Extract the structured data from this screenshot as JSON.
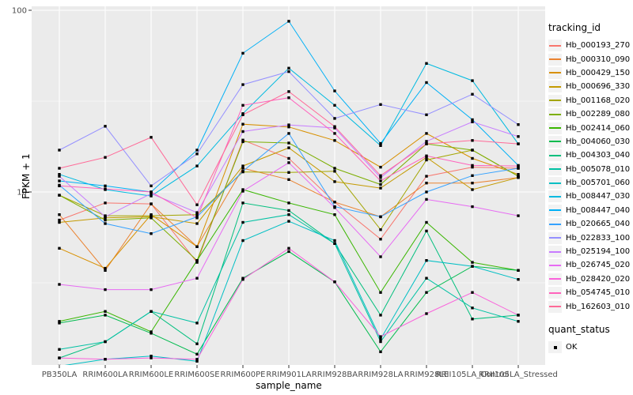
{
  "figure": {
    "legend": {
      "tracking_title": "tracking_id",
      "quant_title": "quant_status",
      "quant_item_label": "OK"
    },
    "colors": {
      "panel_bg": "#EBEBEB",
      "grid": "#FFFFFF",
      "legend_key_bg": "#F2F2F2",
      "tick_text": "#4D4D4D",
      "axis_title_text": "#000000",
      "marker": "#000000",
      "tick_mark": "#333333"
    }
  },
  "chart_data": {
    "type": "line",
    "title": "",
    "xlabel": "sample_name",
    "ylabel": "FPKM + 1",
    "y_scale": "log10",
    "ylim": [
      1.05,
      105
    ],
    "grid": "on",
    "legend_position": "right",
    "marker": "filled-black-square",
    "quant_status": "OK",
    "y_major_ticks": [
      {
        "value": 10,
        "label": "10"
      },
      {
        "value": 100,
        "label": "100"
      }
    ],
    "y_minor_ticks": [
      3.1623,
      31.623
    ],
    "categories": [
      "PB350LA",
      "RRIM600LA",
      "RRIM600LE",
      "RRIM600SE",
      "RRIM600PE",
      "RRIM901LA",
      "RRIM928BA",
      "RRIM928LA",
      "RRIM928LE",
      "RRII105LA_Control",
      "RRII105LA_Stressed"
    ],
    "series": [
      {
        "name": "Hb_000193_270",
        "color": "#F8766D",
        "values": [
          7.0,
          8.7,
          8.6,
          4.1,
          19.3,
          15.3,
          8.8,
          5.5,
          12.2,
          13.7,
          13.5
        ]
      },
      {
        "name": "Hb_000310_090",
        "color": "#EA8331",
        "values": [
          7.5,
          3.7,
          8.6,
          5.0,
          13.5,
          11.7,
          8.8,
          7.3,
          11.2,
          11.2,
          12.0
        ]
      },
      {
        "name": "Hb_000429_150",
        "color": "#D89000",
        "values": [
          4.9,
          3.8,
          7.5,
          5.0,
          23.6,
          22.8,
          19.2,
          13.7,
          21.0,
          15.3,
          12.5
        ]
      },
      {
        "name": "Hb_000696_330",
        "color": "#C49A00",
        "values": [
          6.8,
          7.2,
          7.3,
          6.7,
          13.9,
          17.5,
          11.4,
          10.5,
          15.5,
          10.3,
          12.0
        ]
      },
      {
        "name": "Hb_001168_020",
        "color": "#A3A500",
        "values": [
          9.6,
          7.4,
          7.4,
          7.5,
          12.9,
          12.8,
          13.0,
          6.2,
          15.0,
          17.0,
          12.2
        ]
      },
      {
        "name": "Hb_002289_080",
        "color": "#7CAE00",
        "values": [
          9.6,
          7.0,
          7.2,
          4.2,
          18.9,
          18.6,
          13.5,
          11.0,
          18.4,
          17.0,
          12.2
        ]
      },
      {
        "name": "Hb_002414_060",
        "color": "#39B600",
        "values": [
          1.94,
          2.2,
          1.7,
          4.2,
          10.3,
          8.7,
          7.5,
          2.8,
          6.8,
          4.1,
          3.7
        ]
      },
      {
        "name": "Hb_004060_030",
        "color": "#00BB4E",
        "values": [
          1.9,
          2.1,
          1.67,
          1.28,
          3.35,
          4.7,
          3.2,
          1.32,
          2.8,
          3.9,
          3.7
        ]
      },
      {
        "name": "Hb_004303_040",
        "color": "#00BF7D",
        "values": [
          1.22,
          1.5,
          2.2,
          1.46,
          8.7,
          7.9,
          5.2,
          2.1,
          6.1,
          2.0,
          2.1
        ]
      },
      {
        "name": "Hb_005078_010",
        "color": "#00C1A3",
        "values": [
          1.36,
          1.5,
          2.2,
          1.9,
          6.8,
          7.5,
          5.2,
          1.5,
          3.35,
          2.3,
          1.94
        ]
      },
      {
        "name": "Hb_005701_060",
        "color": "#00BFC4",
        "values": [
          1.1,
          1.2,
          1.25,
          1.17,
          5.4,
          6.9,
          5.4,
          1.55,
          4.2,
          3.9,
          3.3
        ]
      },
      {
        "name": "Hb_008447_030",
        "color": "#00BAE0",
        "values": [
          12.5,
          10.3,
          9.5,
          13.9,
          27.0,
          48.0,
          30.0,
          18.0,
          51.0,
          41.0,
          18.4
        ]
      },
      {
        "name": "Hb_008447_040",
        "color": "#00B0F6",
        "values": [
          11.5,
          10.8,
          10.0,
          17.0,
          58.0,
          87.0,
          36.0,
          18.5,
          40.0,
          25.0,
          14.0
        ]
      },
      {
        "name": "Hb_020665_040",
        "color": "#35A2FF",
        "values": [
          10.9,
          6.7,
          5.9,
          7.3,
          13.0,
          21.0,
          8.3,
          7.3,
          10.0,
          12.3,
          13.5
        ]
      },
      {
        "name": "Hb_022833_100",
        "color": "#9590FF",
        "values": [
          17.0,
          23.0,
          10.8,
          16.2,
          39.0,
          46.0,
          25.4,
          30.3,
          26.6,
          34.5,
          23.5
        ]
      },
      {
        "name": "Hb_025194_100",
        "color": "#C77CFF",
        "values": [
          12.2,
          7.3,
          9.8,
          7.7,
          21.5,
          23.4,
          22.5,
          12.0,
          19.0,
          24.3,
          20.2
        ]
      },
      {
        "name": "Hb_026745_020",
        "color": "#E76BF3",
        "values": [
          3.1,
          2.9,
          2.9,
          3.35,
          10.1,
          14.5,
          8.2,
          4.4,
          9.1,
          8.3,
          7.4
        ]
      },
      {
        "name": "Hb_028420_020",
        "color": "#FA62DB",
        "values": [
          1.22,
          1.2,
          1.22,
          1.2,
          3.3,
          4.9,
          3.2,
          1.6,
          2.14,
          2.8,
          2.1
        ]
      },
      {
        "name": "Hb_054745_010",
        "color": "#FF62BC",
        "values": [
          10.8,
          10.4,
          10.0,
          7.2,
          30.0,
          33.0,
          21.0,
          11.5,
          15.8,
          14.0,
          13.9
        ]
      },
      {
        "name": "Hb_162603_010",
        "color": "#FF6A98",
        "values": [
          13.5,
          15.5,
          20.0,
          8.5,
          26.6,
          35.7,
          22.9,
          12.3,
          18.4,
          19.2,
          18.4
        ]
      }
    ]
  }
}
